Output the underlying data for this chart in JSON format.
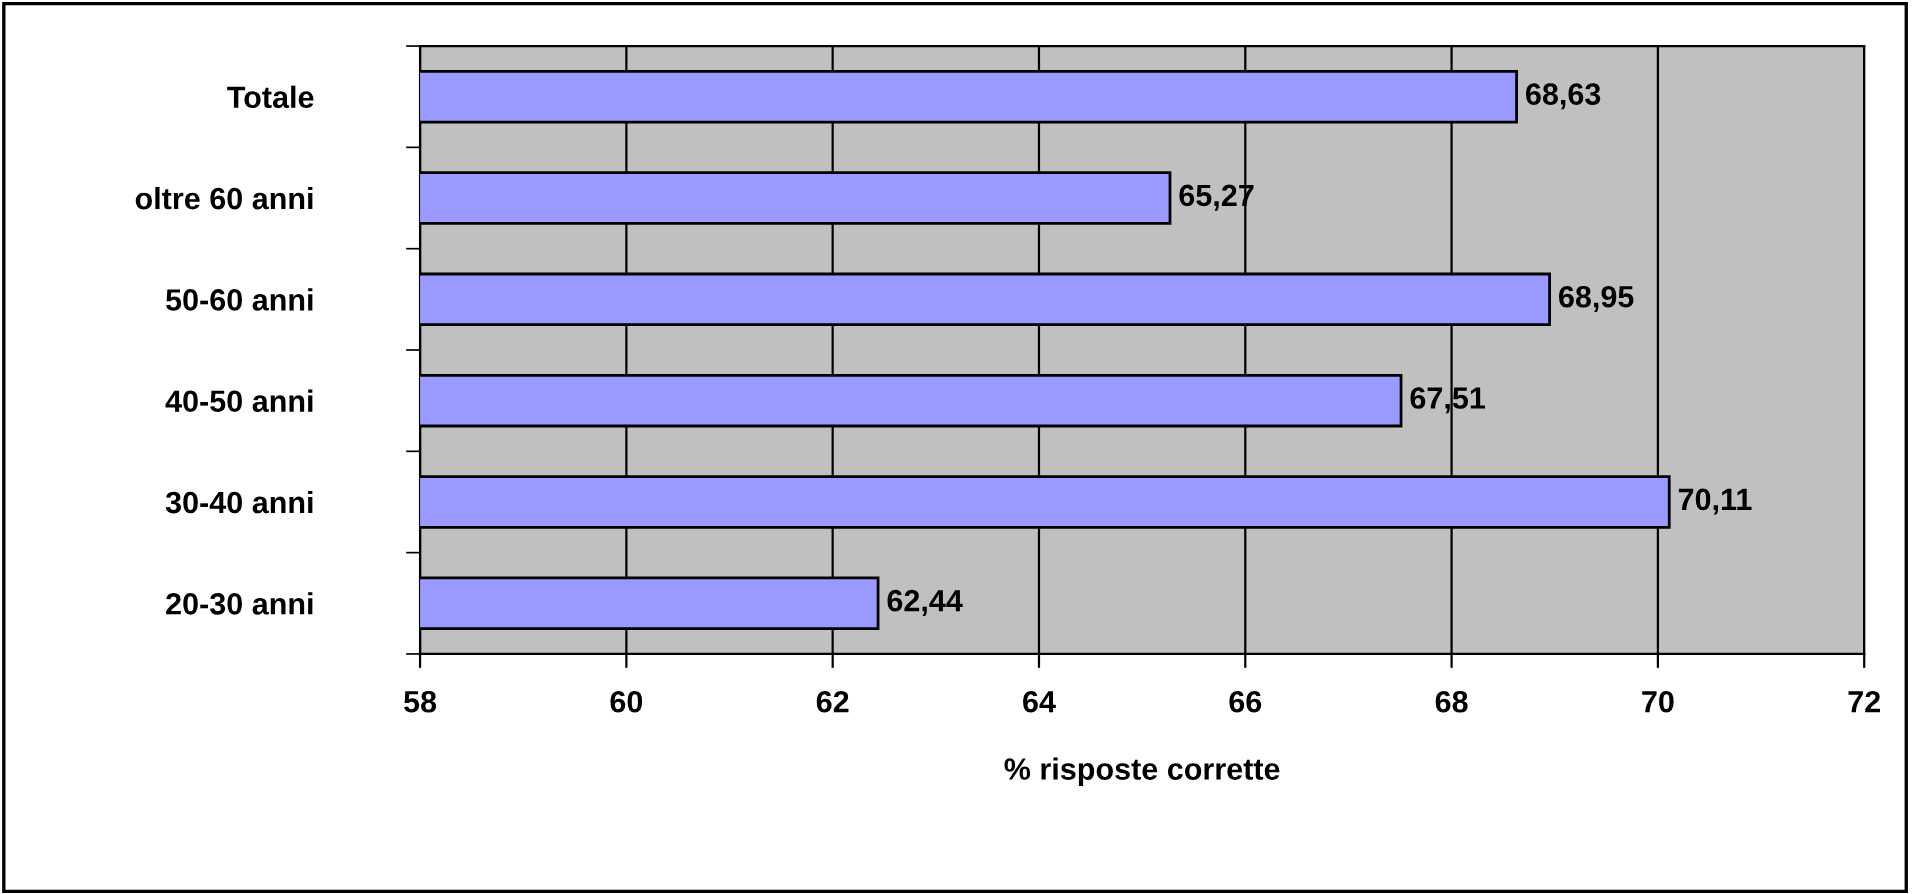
{
  "chart_data": {
    "type": "bar",
    "orientation": "horizontal",
    "categories": [
      "Totale",
      "oltre 60 anni",
      "50-60 anni",
      "40-50 anni",
      "30-40 anni",
      "20-30 anni"
    ],
    "values": [
      68.63,
      65.27,
      68.95,
      67.51,
      70.11,
      62.44
    ],
    "value_labels": [
      "68,63",
      "65,27",
      "68,95",
      "67,51",
      "70,11",
      "62,44"
    ],
    "color": "#9999ff",
    "xlabel": "% risposte corrette",
    "xlim": [
      58,
      72
    ],
    "xticks": [
      58,
      60,
      62,
      64,
      66,
      68,
      70,
      72
    ],
    "grid": "x"
  }
}
